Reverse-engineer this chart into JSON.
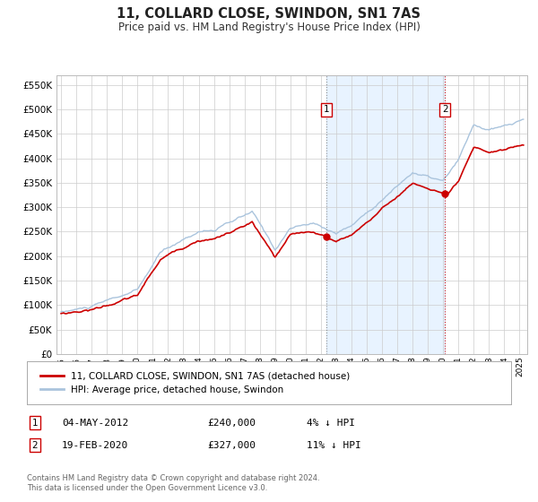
{
  "title": "11, COLLARD CLOSE, SWINDON, SN1 7AS",
  "subtitle": "Price paid vs. HM Land Registry's House Price Index (HPI)",
  "background_color": "#ffffff",
  "plot_bg_color": "#ffffff",
  "grid_color": "#cccccc",
  "hpi_color": "#aac4dd",
  "property_color": "#cc0000",
  "ylim": [
    0,
    570000
  ],
  "yticks": [
    0,
    50000,
    100000,
    150000,
    200000,
    250000,
    300000,
    350000,
    400000,
    450000,
    500000,
    550000
  ],
  "ytick_labels": [
    "£0",
    "£50K",
    "£100K",
    "£150K",
    "£200K",
    "£250K",
    "£300K",
    "£350K",
    "£400K",
    "£450K",
    "£500K",
    "£550K"
  ],
  "xlim_start": 1994.7,
  "xlim_end": 2025.5,
  "xticks": [
    1995,
    1996,
    1997,
    1998,
    1999,
    2000,
    2001,
    2002,
    2003,
    2004,
    2005,
    2006,
    2007,
    2008,
    2009,
    2010,
    2011,
    2012,
    2013,
    2014,
    2015,
    2016,
    2017,
    2018,
    2019,
    2020,
    2021,
    2022,
    2023,
    2024,
    2025
  ],
  "transaction1_date": 2012.34,
  "transaction1_price": 240000,
  "transaction2_date": 2020.12,
  "transaction2_price": 327000,
  "legend_property": "11, COLLARD CLOSE, SWINDON, SN1 7AS (detached house)",
  "legend_hpi": "HPI: Average price, detached house, Swindon",
  "table_row1": [
    "1",
    "04-MAY-2012",
    "£240,000",
    "4% ↓ HPI"
  ],
  "table_row2": [
    "2",
    "19-FEB-2020",
    "£327,000",
    "11% ↓ HPI"
  ],
  "footer": "Contains HM Land Registry data © Crown copyright and database right 2024.\nThis data is licensed under the Open Government Licence v3.0.",
  "shaded_start": 2012.34,
  "shaded_end": 2020.12
}
